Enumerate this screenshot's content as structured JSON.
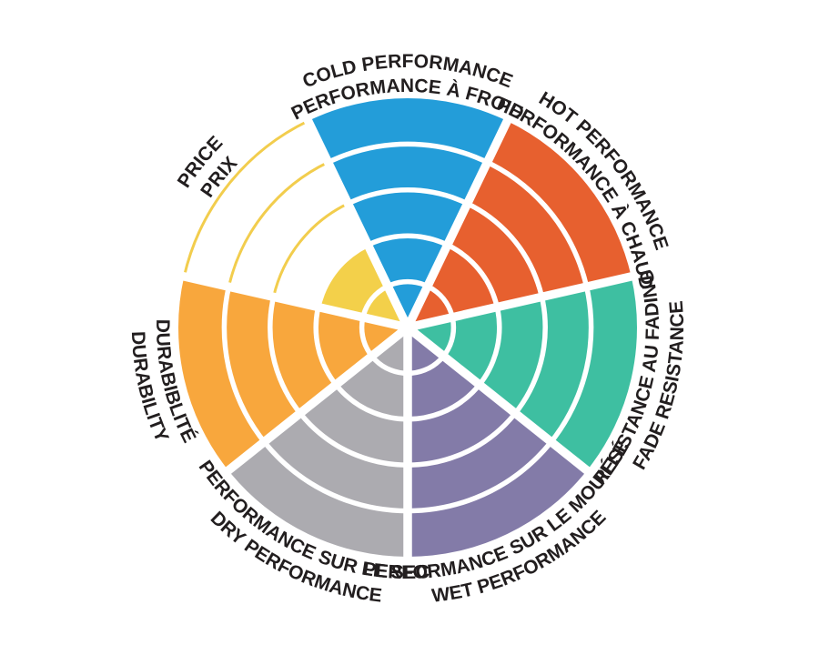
{
  "chart_data": {
    "type": "bar",
    "polar": true,
    "title": "",
    "scale_max": 5,
    "rings": 5,
    "layout": {
      "start_angle_deg": 0,
      "direction": "clockwise",
      "sector_count": 7,
      "grid": "concentric-rings",
      "legend_position": "labels-around-circle"
    },
    "colors": {
      "separator": "#FFFFFF",
      "ring_line": "#FFFFFF",
      "label_text": "#221E1F",
      "background": "#FFFFFF"
    },
    "categories": [
      "COLD PERFORMANCE / PERFORMANCE À FROID",
      "HOT PERFORMANCE / PERFORMANCE À CHAUD",
      "RÉSISTANCE AU FADING / FADE RESISTANCE",
      "PERFORMANCE SUR LE MOUILLÉ / WET PERFORMANCE",
      "PERFORMANCE SUR LE SEC / DRY PERFORMANCE",
      "DURABIBLITÉ / DURABILITY",
      "PRICE / PRIX"
    ],
    "values": [
      5,
      5,
      5,
      5,
      5,
      5,
      2
    ],
    "sectors": [
      {
        "id": "cold-performance",
        "label_line1": "COLD PERFORMANCE",
        "label_line2": "PERFORMANCE À FROID",
        "value": 5,
        "max": 5,
        "color": "#239DD9",
        "flipped": false
      },
      {
        "id": "hot-performance",
        "label_line1": "HOT PERFORMANCE",
        "label_line2": "PERFORMANCE À CHAUD",
        "value": 5,
        "max": 5,
        "color": "#E7602F",
        "flipped": false
      },
      {
        "id": "fade-resistance",
        "label_line1": "RÉSISTANCE AU FADING",
        "label_line2": "FADE RESISTANCE",
        "value": 5,
        "max": 5,
        "color": "#3EBFA1",
        "flipped": true
      },
      {
        "id": "wet-performance",
        "label_line1": "PERFORMANCE SUR LE MOUILLÉ",
        "label_line2": "WET PERFORMANCE",
        "value": 5,
        "max": 5,
        "color": "#837BA8",
        "flipped": true
      },
      {
        "id": "dry-performance",
        "label_line1": "PERFORMANCE SUR LE SEC",
        "label_line2": "DRY PERFORMANCE",
        "value": 5,
        "max": 5,
        "color": "#ACABB0",
        "flipped": true
      },
      {
        "id": "durability",
        "label_line1": "DURABIBLITÉ",
        "label_line2": "DURABILITY",
        "value": 5,
        "max": 5,
        "color": "#F8A73D",
        "flipped": true
      },
      {
        "id": "price",
        "label_line1": "PRICE",
        "label_line2": "PRIX",
        "value": 2,
        "max": 5,
        "color": "#F3D04A",
        "outline_color": "#F2CD4D",
        "flipped": false
      }
    ]
  }
}
